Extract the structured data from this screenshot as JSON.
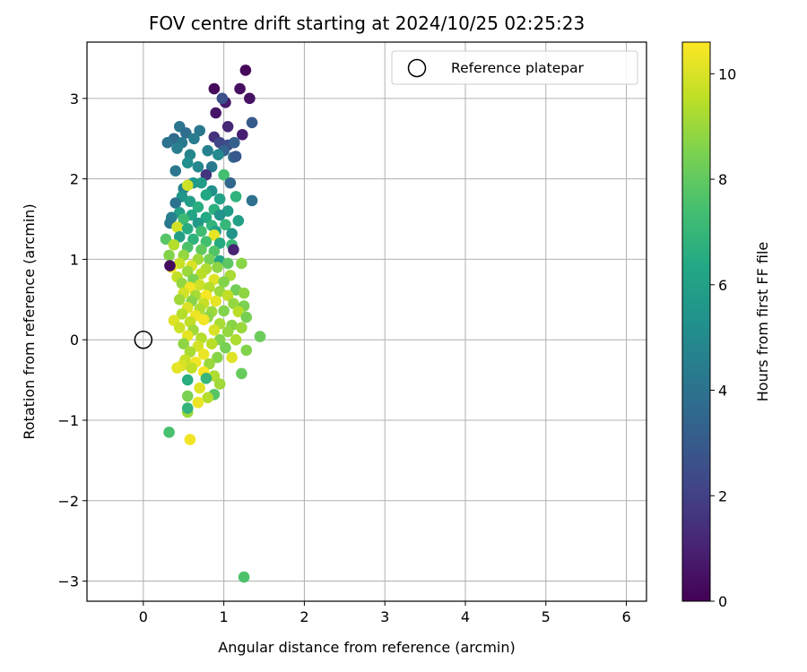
{
  "chart_data": {
    "type": "scatter",
    "title": "FOV centre drift starting at 2024/10/25 02:25:23",
    "xlabel": "Angular distance from reference (arcmin)",
    "ylabel": "Rotation from reference (arcmin)",
    "xlim": [
      -0.7,
      6.25
    ],
    "ylim": [
      -3.25,
      3.7
    ],
    "xticks": [
      0,
      1,
      2,
      3,
      4,
      5,
      6
    ],
    "xtick_labels": [
      "0",
      "1",
      "2",
      "3",
      "4",
      "5",
      "6"
    ],
    "yticks": [
      -3,
      -2,
      -1,
      0,
      1,
      2,
      3
    ],
    "ytick_labels": [
      "−3",
      "−2",
      "−1",
      "0",
      "1",
      "2",
      "3"
    ],
    "grid": true,
    "legend": {
      "placement": "top-right",
      "entries": [
        "Reference platepar"
      ]
    },
    "reference_point": {
      "x": 0,
      "y": 0,
      "label": "Reference platepar"
    },
    "colorbar": {
      "label": "Hours from first FF file",
      "range": [
        0,
        10.6
      ],
      "ticks": [
        0,
        2,
        4,
        6,
        8,
        10
      ],
      "tick_labels": [
        "0",
        "2",
        "4",
        "6",
        "8",
        "10"
      ],
      "colormap": "viridis"
    },
    "points": [
      {
        "x": 1.27,
        "y": 3.35,
        "c": 0.2
      },
      {
        "x": 0.88,
        "y": 3.12,
        "c": 0.3
      },
      {
        "x": 1.2,
        "y": 3.12,
        "c": 0.4
      },
      {
        "x": 1.32,
        "y": 3.0,
        "c": 0.5
      },
      {
        "x": 1.02,
        "y": 2.95,
        "c": 0.8
      },
      {
        "x": 0.9,
        "y": 2.82,
        "c": 0.6
      },
      {
        "x": 0.98,
        "y": 3.0,
        "c": 2.6
      },
      {
        "x": 1.35,
        "y": 2.7,
        "c": 3.0
      },
      {
        "x": 1.05,
        "y": 2.65,
        "c": 1.2
      },
      {
        "x": 1.23,
        "y": 2.55,
        "c": 0.9
      },
      {
        "x": 0.88,
        "y": 2.52,
        "c": 1.5
      },
      {
        "x": 0.45,
        "y": 2.65,
        "c": 4.1
      },
      {
        "x": 0.53,
        "y": 2.57,
        "c": 3.8
      },
      {
        "x": 0.38,
        "y": 2.5,
        "c": 3.6
      },
      {
        "x": 0.3,
        "y": 2.45,
        "c": 4.0
      },
      {
        "x": 0.48,
        "y": 2.45,
        "c": 4.3
      },
      {
        "x": 0.7,
        "y": 2.6,
        "c": 4.2
      },
      {
        "x": 0.63,
        "y": 2.5,
        "c": 4.4
      },
      {
        "x": 0.95,
        "y": 2.45,
        "c": 2.2
      },
      {
        "x": 1.05,
        "y": 2.42,
        "c": 2.5
      },
      {
        "x": 1.13,
        "y": 2.45,
        "c": 3.2
      },
      {
        "x": 1.0,
        "y": 2.35,
        "c": 3.4
      },
      {
        "x": 0.8,
        "y": 2.35,
        "c": 4.6
      },
      {
        "x": 0.58,
        "y": 2.3,
        "c": 4.8
      },
      {
        "x": 0.42,
        "y": 2.38,
        "c": 4.5
      },
      {
        "x": 0.93,
        "y": 2.3,
        "c": 5.0
      },
      {
        "x": 1.12,
        "y": 2.27,
        "c": 3.7
      },
      {
        "x": 1.15,
        "y": 2.28,
        "c": 2.9
      },
      {
        "x": 0.55,
        "y": 2.2,
        "c": 5.2
      },
      {
        "x": 0.68,
        "y": 2.15,
        "c": 4.9
      },
      {
        "x": 0.85,
        "y": 2.15,
        "c": 4.3
      },
      {
        "x": 0.4,
        "y": 2.1,
        "c": 4.2
      },
      {
        "x": 0.78,
        "y": 2.05,
        "c": 1.6
      },
      {
        "x": 1.0,
        "y": 2.05,
        "c": 7.4
      },
      {
        "x": 1.08,
        "y": 1.95,
        "c": 3.5
      },
      {
        "x": 0.62,
        "y": 1.95,
        "c": 5.6
      },
      {
        "x": 0.72,
        "y": 1.95,
        "c": 5.8
      },
      {
        "x": 0.5,
        "y": 1.88,
        "c": 4.7
      },
      {
        "x": 0.55,
        "y": 1.92,
        "c": 9.8
      },
      {
        "x": 0.85,
        "y": 1.85,
        "c": 5.3
      },
      {
        "x": 0.48,
        "y": 1.78,
        "c": 5.5
      },
      {
        "x": 0.58,
        "y": 1.72,
        "c": 5.9
      },
      {
        "x": 0.78,
        "y": 1.8,
        "c": 6.3
      },
      {
        "x": 0.95,
        "y": 1.75,
        "c": 6.1
      },
      {
        "x": 1.15,
        "y": 1.78,
        "c": 6.8
      },
      {
        "x": 1.35,
        "y": 1.73,
        "c": 3.9
      },
      {
        "x": 0.4,
        "y": 1.7,
        "c": 4.0
      },
      {
        "x": 0.68,
        "y": 1.65,
        "c": 6.6
      },
      {
        "x": 0.88,
        "y": 1.62,
        "c": 6.7
      },
      {
        "x": 1.05,
        "y": 1.6,
        "c": 5.8
      },
      {
        "x": 0.45,
        "y": 1.58,
        "c": 6.0
      },
      {
        "x": 0.6,
        "y": 1.55,
        "c": 6.2
      },
      {
        "x": 0.78,
        "y": 1.52,
        "c": 6.4
      },
      {
        "x": 0.95,
        "y": 1.55,
        "c": 5.4
      },
      {
        "x": 1.18,
        "y": 1.48,
        "c": 6.0
      },
      {
        "x": 0.35,
        "y": 1.52,
        "c": 4.6
      },
      {
        "x": 0.33,
        "y": 1.45,
        "c": 4.3
      },
      {
        "x": 0.5,
        "y": 1.5,
        "c": 7.2
      },
      {
        "x": 0.68,
        "y": 1.45,
        "c": 5.7
      },
      {
        "x": 0.85,
        "y": 1.42,
        "c": 6.9
      },
      {
        "x": 1.02,
        "y": 1.43,
        "c": 7.0
      },
      {
        "x": 0.42,
        "y": 1.4,
        "c": 9.9
      },
      {
        "x": 0.55,
        "y": 1.38,
        "c": 6.5
      },
      {
        "x": 0.72,
        "y": 1.35,
        "c": 7.3
      },
      {
        "x": 0.9,
        "y": 1.35,
        "c": 6.1
      },
      {
        "x": 1.1,
        "y": 1.32,
        "c": 5.5
      },
      {
        "x": 0.88,
        "y": 1.3,
        "c": 10.2
      },
      {
        "x": 0.28,
        "y": 1.25,
        "c": 7.8
      },
      {
        "x": 0.45,
        "y": 1.28,
        "c": 5.9
      },
      {
        "x": 0.62,
        "y": 1.25,
        "c": 6.8
      },
      {
        "x": 0.78,
        "y": 1.22,
        "c": 7.4
      },
      {
        "x": 0.95,
        "y": 1.2,
        "c": 6.5
      },
      {
        "x": 1.1,
        "y": 1.18,
        "c": 7.1
      },
      {
        "x": 0.38,
        "y": 1.18,
        "c": 9.4
      },
      {
        "x": 0.55,
        "y": 1.15,
        "c": 7.6
      },
      {
        "x": 0.72,
        "y": 1.12,
        "c": 8.0
      },
      {
        "x": 0.88,
        "y": 1.1,
        "c": 7.7
      },
      {
        "x": 1.12,
        "y": 1.12,
        "c": 1.0
      },
      {
        "x": 0.32,
        "y": 1.05,
        "c": 8.6
      },
      {
        "x": 0.5,
        "y": 1.05,
        "c": 8.9
      },
      {
        "x": 0.68,
        "y": 1.0,
        "c": 9.1
      },
      {
        "x": 0.82,
        "y": 1.0,
        "c": 8.4
      },
      {
        "x": 0.95,
        "y": 0.98,
        "c": 6.2
      },
      {
        "x": 1.05,
        "y": 0.95,
        "c": 7.9
      },
      {
        "x": 1.22,
        "y": 0.95,
        "c": 8.7
      },
      {
        "x": 0.45,
        "y": 0.95,
        "c": 9.7
      },
      {
        "x": 0.6,
        "y": 0.92,
        "c": 10.0
      },
      {
        "x": 0.78,
        "y": 0.88,
        "c": 9.3
      },
      {
        "x": 0.92,
        "y": 0.9,
        "c": 8.8
      },
      {
        "x": 0.35,
        "y": 0.9,
        "c": 10.3
      },
      {
        "x": 0.33,
        "y": 0.92,
        "c": 0.3
      },
      {
        "x": 0.55,
        "y": 0.85,
        "c": 9.0
      },
      {
        "x": 0.72,
        "y": 0.82,
        "c": 9.5
      },
      {
        "x": 1.08,
        "y": 0.8,
        "c": 9.2
      },
      {
        "x": 0.42,
        "y": 0.78,
        "c": 9.6
      },
      {
        "x": 0.62,
        "y": 0.75,
        "c": 8.5
      },
      {
        "x": 0.88,
        "y": 0.75,
        "c": 10.1
      },
      {
        "x": 1.0,
        "y": 0.72,
        "c": 8.6
      },
      {
        "x": 0.48,
        "y": 0.7,
        "c": 8.9
      },
      {
        "x": 0.7,
        "y": 0.68,
        "c": 9.8
      },
      {
        "x": 0.82,
        "y": 0.65,
        "c": 9.4
      },
      {
        "x": 0.58,
        "y": 0.65,
        "c": 10.4
      },
      {
        "x": 1.15,
        "y": 0.62,
        "c": 8.3
      },
      {
        "x": 0.95,
        "y": 0.6,
        "c": 9.0
      },
      {
        "x": 1.25,
        "y": 0.58,
        "c": 8.8
      },
      {
        "x": 0.5,
        "y": 0.58,
        "c": 9.9
      },
      {
        "x": 0.65,
        "y": 0.55,
        "c": 9.2
      },
      {
        "x": 0.78,
        "y": 0.55,
        "c": 10.5
      },
      {
        "x": 1.05,
        "y": 0.55,
        "c": 9.6
      },
      {
        "x": 0.45,
        "y": 0.5,
        "c": 9.1
      },
      {
        "x": 0.6,
        "y": 0.48,
        "c": 8.7
      },
      {
        "x": 0.75,
        "y": 0.45,
        "c": 9.7
      },
      {
        "x": 0.9,
        "y": 0.48,
        "c": 10.2
      },
      {
        "x": 1.12,
        "y": 0.45,
        "c": 8.9
      },
      {
        "x": 1.25,
        "y": 0.42,
        "c": 8.5
      },
      {
        "x": 0.55,
        "y": 0.4,
        "c": 10.0
      },
      {
        "x": 0.7,
        "y": 0.38,
        "c": 9.3
      },
      {
        "x": 0.85,
        "y": 0.35,
        "c": 9.0
      },
      {
        "x": 1.0,
        "y": 0.36,
        "c": 8.6
      },
      {
        "x": 1.18,
        "y": 0.35,
        "c": 9.5
      },
      {
        "x": 0.48,
        "y": 0.32,
        "c": 9.4
      },
      {
        "x": 0.65,
        "y": 0.3,
        "c": 10.3
      },
      {
        "x": 0.8,
        "y": 0.28,
        "c": 8.8
      },
      {
        "x": 1.28,
        "y": 0.28,
        "c": 8.4
      },
      {
        "x": 0.38,
        "y": 0.24,
        "c": 10.1
      },
      {
        "x": 0.58,
        "y": 0.22,
        "c": 9.6
      },
      {
        "x": 0.75,
        "y": 0.25,
        "c": 10.4
      },
      {
        "x": 0.95,
        "y": 0.2,
        "c": 9.2
      },
      {
        "x": 1.1,
        "y": 0.18,
        "c": 8.7
      },
      {
        "x": 1.22,
        "y": 0.15,
        "c": 9.0
      },
      {
        "x": 0.45,
        "y": 0.15,
        "c": 9.8
      },
      {
        "x": 0.62,
        "y": 0.12,
        "c": 9.1
      },
      {
        "x": 0.88,
        "y": 0.12,
        "c": 10.0
      },
      {
        "x": 1.05,
        "y": 0.1,
        "c": 8.9
      },
      {
        "x": 1.45,
        "y": 0.04,
        "c": 8.2
      },
      {
        "x": 0.55,
        "y": 0.05,
        "c": 10.2
      },
      {
        "x": 0.72,
        "y": 0.02,
        "c": 9.4
      },
      {
        "x": 0.95,
        "y": 0.0,
        "c": 8.6
      },
      {
        "x": 1.15,
        "y": 0.0,
        "c": 9.3
      },
      {
        "x": 0.5,
        "y": -0.05,
        "c": 8.8
      },
      {
        "x": 0.68,
        "y": -0.08,
        "c": 9.9
      },
      {
        "x": 0.85,
        "y": -0.05,
        "c": 9.5
      },
      {
        "x": 1.02,
        "y": -0.1,
        "c": 8.4
      },
      {
        "x": 1.28,
        "y": -0.13,
        "c": 8.6
      },
      {
        "x": 0.58,
        "y": -0.15,
        "c": 9.2
      },
      {
        "x": 0.75,
        "y": -0.18,
        "c": 10.3
      },
      {
        "x": 0.92,
        "y": -0.22,
        "c": 8.7
      },
      {
        "x": 1.1,
        "y": -0.22,
        "c": 10.1
      },
      {
        "x": 0.52,
        "y": -0.25,
        "c": 9.7
      },
      {
        "x": 0.65,
        "y": -0.28,
        "c": 10.4
      },
      {
        "x": 0.82,
        "y": -0.3,
        "c": 9.0
      },
      {
        "x": 0.48,
        "y": -0.32,
        "c": 10.0
      },
      {
        "x": 0.42,
        "y": -0.35,
        "c": 10.2
      },
      {
        "x": 0.6,
        "y": -0.35,
        "c": 9.6
      },
      {
        "x": 0.75,
        "y": -0.4,
        "c": 10.5
      },
      {
        "x": 1.22,
        "y": -0.42,
        "c": 8.1
      },
      {
        "x": 0.88,
        "y": -0.45,
        "c": 9.3
      },
      {
        "x": 0.78,
        "y": -0.48,
        "c": 7.0
      },
      {
        "x": 0.55,
        "y": -0.5,
        "c": 6.6
      },
      {
        "x": 0.95,
        "y": -0.55,
        "c": 9.1
      },
      {
        "x": 0.7,
        "y": -0.6,
        "c": 10.1
      },
      {
        "x": 0.88,
        "y": -0.68,
        "c": 7.8
      },
      {
        "x": 0.55,
        "y": -0.7,
        "c": 8.5
      },
      {
        "x": 0.8,
        "y": -0.72,
        "c": 9.4
      },
      {
        "x": 0.68,
        "y": -0.78,
        "c": 10.3
      },
      {
        "x": 0.55,
        "y": -0.9,
        "c": 9.0
      },
      {
        "x": 0.55,
        "y": -0.85,
        "c": 6.9
      },
      {
        "x": 0.32,
        "y": -1.15,
        "c": 7.5
      },
      {
        "x": 0.58,
        "y": -1.24,
        "c": 10.4
      },
      {
        "x": 1.25,
        "y": -2.95,
        "c": 7.6
      }
    ]
  }
}
